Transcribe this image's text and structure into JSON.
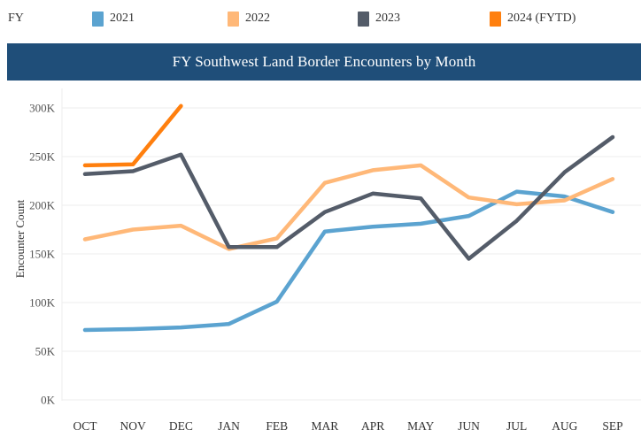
{
  "legend": {
    "title": "FY",
    "items": [
      {
        "label": "2021",
        "color": "#5ba3d0"
      },
      {
        "label": "2022",
        "color": "#ffb878"
      },
      {
        "label": "2023",
        "color": "#545c69"
      },
      {
        "label": "2024 (FYTD)",
        "color": "#ff7f0e"
      }
    ]
  },
  "header": {
    "title": "FY Southwest Land Border Encounters by Month",
    "background": "#1f4e79"
  },
  "chart_data": {
    "type": "line",
    "title": "FY Southwest Land Border Encounters by Month",
    "xlabel": "",
    "ylabel": "Encounter Count",
    "categories": [
      "OCT",
      "NOV",
      "DEC",
      "JAN",
      "FEB",
      "MAR",
      "APR",
      "MAY",
      "JUN",
      "JUL",
      "AUG",
      "SEP"
    ],
    "ylim": [
      0,
      300000
    ],
    "yticks": [
      0,
      50000,
      100000,
      150000,
      200000,
      250000,
      300000
    ],
    "ytick_labels": [
      "0K",
      "50K",
      "100K",
      "150K",
      "200K",
      "250K",
      "300K"
    ],
    "grid": true,
    "legend_position": "top",
    "series": [
      {
        "name": "2021",
        "color": "#5ba3d0",
        "values": [
          71800,
          72700,
          74500,
          78000,
          101000,
          173000,
          178000,
          181000,
          189000,
          214000,
          209000,
          193000
        ]
      },
      {
        "name": "2022",
        "color": "#ffb878",
        "values": [
          165000,
          175000,
          179000,
          155000,
          166000,
          223000,
          236000,
          241000,
          208000,
          201000,
          205000,
          227000
        ]
      },
      {
        "name": "2023",
        "color": "#545c69",
        "values": [
          232000,
          235000,
          252000,
          157000,
          157000,
          193000,
          212000,
          207000,
          145000,
          184000,
          234000,
          270000
        ]
      },
      {
        "name": "2024 (FYTD)",
        "color": "#ff7f0e",
        "values": [
          241000,
          242000,
          302000
        ]
      }
    ]
  }
}
